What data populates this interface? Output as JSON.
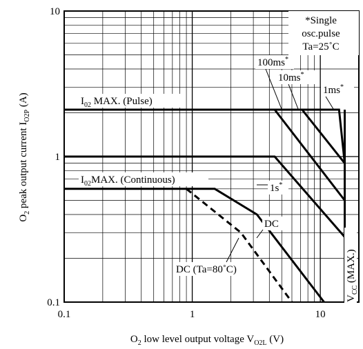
{
  "chart_data": {
    "type": "line",
    "x_scale": "log",
    "y_scale": "log",
    "xlim": [
      0.1,
      20
    ],
    "ylim": [
      0.1,
      10
    ],
    "grid": true,
    "xlabel": {
      "main": "O",
      "sub1": "2",
      "text": " low level output voltage V",
      "sub2": "O2L",
      "unit": " (V)"
    },
    "ylabel": {
      "main": "O",
      "sub1": "2",
      "text": " peak output current I",
      "sub2": "O2P",
      "unit": " (A)"
    },
    "x_ticks": [
      {
        "value": 0.1,
        "label": "0.1"
      },
      {
        "value": 1,
        "label": "1"
      },
      {
        "value": 10,
        "label": "10"
      }
    ],
    "y_ticks": [
      {
        "value": 0.1,
        "label": "0.1"
      },
      {
        "value": 1,
        "label": "1"
      },
      {
        "value": 10,
        "label": "10"
      }
    ],
    "note": {
      "line1": "*Single",
      "line2": "osc.pulse",
      "line3": "Ta=25˚C"
    },
    "series": [
      {
        "label_key": "lbl_100ms",
        "dash": false,
        "points": [
          [
            0.1,
            2.1
          ],
          [
            4.4,
            2.1
          ],
          [
            15.5,
            0.5
          ]
        ]
      },
      {
        "label_key": "lbl_10ms",
        "dash": false,
        "points": [
          [
            4.4,
            2.1
          ],
          [
            7.2,
            2.1
          ],
          [
            15.5,
            0.9
          ]
        ]
      },
      {
        "label_key": "lbl_1ms",
        "dash": false,
        "points": [
          [
            7.2,
            2.1
          ],
          [
            14,
            2.1
          ],
          [
            15.5,
            0.9
          ]
        ]
      },
      {
        "label_key": "lbl_1s",
        "dash": false,
        "points": [
          [
            0.1,
            1.0
          ],
          [
            4.4,
            1.0
          ],
          [
            15.5,
            0.28
          ]
        ]
      },
      {
        "label_key": "lbl_dc",
        "dash": false,
        "points": [
          [
            0.1,
            0.6
          ],
          [
            1.5,
            0.6
          ],
          [
            3.2,
            0.4
          ],
          [
            10.7,
            0.1
          ]
        ]
      },
      {
        "label_key": "lbl_dc80",
        "dash": true,
        "points": [
          [
            0.9,
            0.6
          ],
          [
            2.4,
            0.3
          ],
          [
            6.0,
            0.1
          ]
        ]
      },
      {
        "label_key": "lbl_vcc",
        "dash": false,
        "points": [
          [
            15.5,
            0.1
          ],
          [
            15.5,
            2.1
          ]
        ]
      }
    ],
    "labels": {
      "lbl_i02_pulse": {
        "main": "I",
        "sub": "02",
        "text": " MAX. (Pulse)"
      },
      "lbl_i02_cont": {
        "main": "I",
        "sub": "02",
        "text": "MAX. (Continuous)"
      },
      "lbl_100ms": {
        "text": "100ms",
        "sup": "*"
      },
      "lbl_10ms": {
        "text": "10ms",
        "sup": "*"
      },
      "lbl_1ms": {
        "text": "1ms",
        "sup": "*"
      },
      "lbl_1s": {
        "text": "1s",
        "sup": "*"
      },
      "lbl_dc": {
        "text": "DC"
      },
      "lbl_dc80": {
        "text": "DC (Ta=80˚C)"
      },
      "lbl_vcc": {
        "main": "V",
        "sub": "CC",
        "text": " (MAX.)"
      }
    }
  }
}
